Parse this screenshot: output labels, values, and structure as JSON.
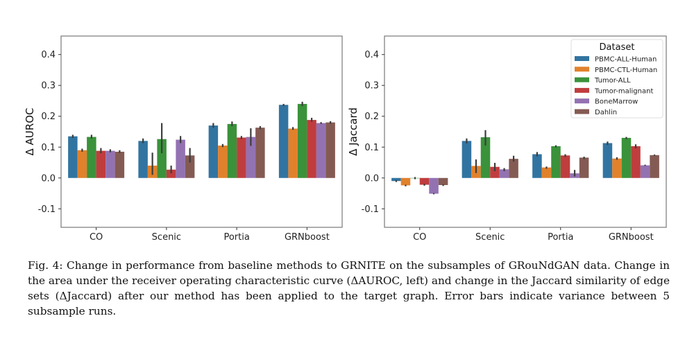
{
  "caption": "Fig. 4: Change in performance from baseline methods to GRNITE on the subsamples of GRouNdGAN data. Change in the area under the receiver operating characteristic curve (ΔAUROC, left) and change in the Jaccard similarity of edge sets (ΔJaccard) after our method has been applied to the target graph. Error bars indicate variance between 5 subsample runs.",
  "colors": [
    "#3274a1",
    "#e1812c",
    "#3a923a",
    "#c03d3e",
    "#9372b2",
    "#845b53"
  ],
  "chart_data": [
    {
      "type": "bar",
      "ylabel": "Δ AUROC",
      "ylim": [
        -0.16,
        0.46
      ],
      "yticks": [
        "-0.1",
        "0.0",
        "0.1",
        "0.2",
        "0.3",
        "0.4"
      ],
      "categories": [
        "CO",
        "Scenic",
        "Portia",
        "GRNboost"
      ],
      "series": [
        {
          "name": "PBMC-ALL-Human",
          "values": [
            0.135,
            0.12,
            0.17,
            0.237
          ],
          "ci": [
            [
              0.13,
              0.14
            ],
            [
              0.113,
              0.128
            ],
            [
              0.163,
              0.178
            ],
            [
              0.233,
              0.24
            ]
          ]
        },
        {
          "name": "PBMC-CTL-Human",
          "values": [
            0.09,
            0.04,
            0.105,
            0.16
          ],
          "ci": [
            [
              0.085,
              0.095
            ],
            [
              0.01,
              0.082
            ],
            [
              0.1,
              0.11
            ],
            [
              0.156,
              0.165
            ]
          ]
        },
        {
          "name": "Tumor-ALL",
          "values": [
            0.133,
            0.126,
            0.175,
            0.24
          ],
          "ci": [
            [
              0.128,
              0.14
            ],
            [
              0.08,
              0.178
            ],
            [
              0.168,
              0.183
            ],
            [
              0.233,
              0.247
            ]
          ]
        },
        {
          "name": "Tumor-malignant",
          "values": [
            0.088,
            0.027,
            0.131,
            0.188
          ],
          "ci": [
            [
              0.08,
              0.097
            ],
            [
              0.015,
              0.04
            ],
            [
              0.126,
              0.136
            ],
            [
              0.182,
              0.195
            ]
          ]
        },
        {
          "name": "BoneMarrow",
          "values": [
            0.088,
            0.124,
            0.133,
            0.178
          ],
          "ci": [
            [
              0.083,
              0.093
            ],
            [
              0.113,
              0.136
            ],
            [
              0.104,
              0.161
            ],
            [
              0.175,
              0.181
            ]
          ]
        },
        {
          "name": "Dahlin",
          "values": [
            0.085,
            0.073,
            0.163,
            0.18
          ],
          "ci": [
            [
              0.081,
              0.09
            ],
            [
              0.05,
              0.097
            ],
            [
              0.158,
              0.168
            ],
            [
              0.176,
              0.184
            ]
          ]
        }
      ],
      "legend": null
    },
    {
      "type": "bar",
      "ylabel": "Δ Jaccard",
      "ylim": [
        -0.16,
        0.46
      ],
      "yticks": [
        "-0.1",
        "0.0",
        "0.1",
        "0.2",
        "0.3",
        "0.4"
      ],
      "categories": [
        "CO",
        "Scenic",
        "Portia",
        "GRNboost"
      ],
      "series": [
        {
          "name": "PBMC-ALL-Human",
          "values": [
            -0.01,
            0.12,
            0.077,
            0.113
          ],
          "ci": [
            [
              -0.013,
              -0.007
            ],
            [
              0.112,
              0.128
            ],
            [
              0.07,
              0.084
            ],
            [
              0.107,
              0.118
            ]
          ]
        },
        {
          "name": "PBMC-CTL-Human",
          "values": [
            -0.024,
            0.039,
            0.034,
            0.063
          ],
          "ci": [
            [
              -0.027,
              -0.022
            ],
            [
              0.016,
              0.06
            ],
            [
              0.03,
              0.037
            ],
            [
              0.059,
              0.067
            ]
          ]
        },
        {
          "name": "Tumor-ALL",
          "values": [
            -0.001,
            0.132,
            0.103,
            0.13
          ],
          "ci": [
            [
              -0.004,
              0.003
            ],
            [
              0.105,
              0.155
            ],
            [
              0.099,
              0.106
            ],
            [
              0.126,
              0.133
            ]
          ]
        },
        {
          "name": "Tumor-malignant",
          "values": [
            -0.022,
            0.036,
            0.073,
            0.103
          ],
          "ci": [
            [
              -0.025,
              -0.019
            ],
            [
              0.022,
              0.049
            ],
            [
              0.068,
              0.077
            ],
            [
              0.096,
              0.109
            ]
          ]
        },
        {
          "name": "BoneMarrow",
          "values": [
            -0.051,
            0.028,
            0.015,
            0.041
          ],
          "ci": [
            [
              -0.053,
              -0.049
            ],
            [
              0.022,
              0.032
            ],
            [
              0.005,
              0.026
            ],
            [
              0.039,
              0.043
            ]
          ]
        },
        {
          "name": "Dahlin",
          "values": [
            -0.023,
            0.062,
            0.066,
            0.074
          ],
          "ci": [
            [
              -0.026,
              -0.021
            ],
            [
              0.053,
              0.072
            ],
            [
              0.061,
              0.069
            ],
            [
              0.072,
              0.076
            ]
          ]
        }
      ],
      "legend": {
        "title": "Dataset",
        "position": "top-right"
      }
    }
  ]
}
